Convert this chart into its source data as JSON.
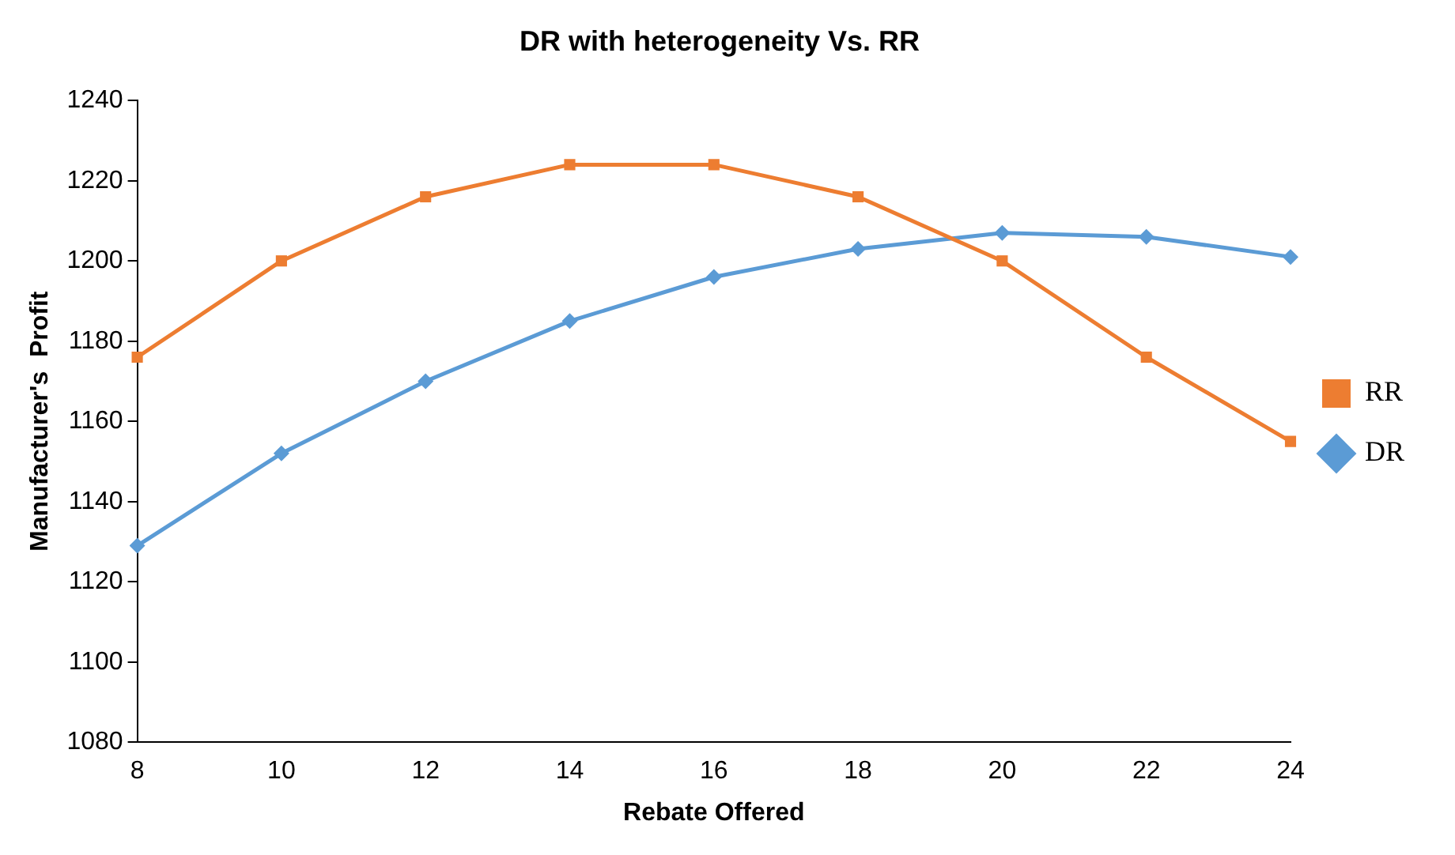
{
  "chart_data": {
    "type": "line",
    "title": "DR with heterogeneity Vs. RR",
    "xlabel": "Rebate Offered",
    "ylabel": "Manufacturer's  Profit",
    "categories": [
      "8",
      "10",
      "12",
      "14",
      "16",
      "18",
      "20",
      "22",
      "24"
    ],
    "series": [
      {
        "name": "RR",
        "color": "#ed7d31",
        "marker": "square",
        "values": [
          1176,
          1200,
          1216,
          1224,
          1224,
          1216,
          1200,
          1176,
          1155
        ]
      },
      {
        "name": "DR",
        "color": "#5b9bd5",
        "marker": "diamond",
        "values": [
          1129,
          1152,
          1170,
          1185,
          1196,
          1203,
          1207,
          1206,
          1201
        ]
      }
    ],
    "ylim": [
      1080,
      1240
    ],
    "yticks": [
      1080,
      1100,
      1120,
      1140,
      1160,
      1180,
      1200,
      1220,
      1240
    ],
    "grid": false,
    "legend": "right",
    "line_style": "solid"
  }
}
